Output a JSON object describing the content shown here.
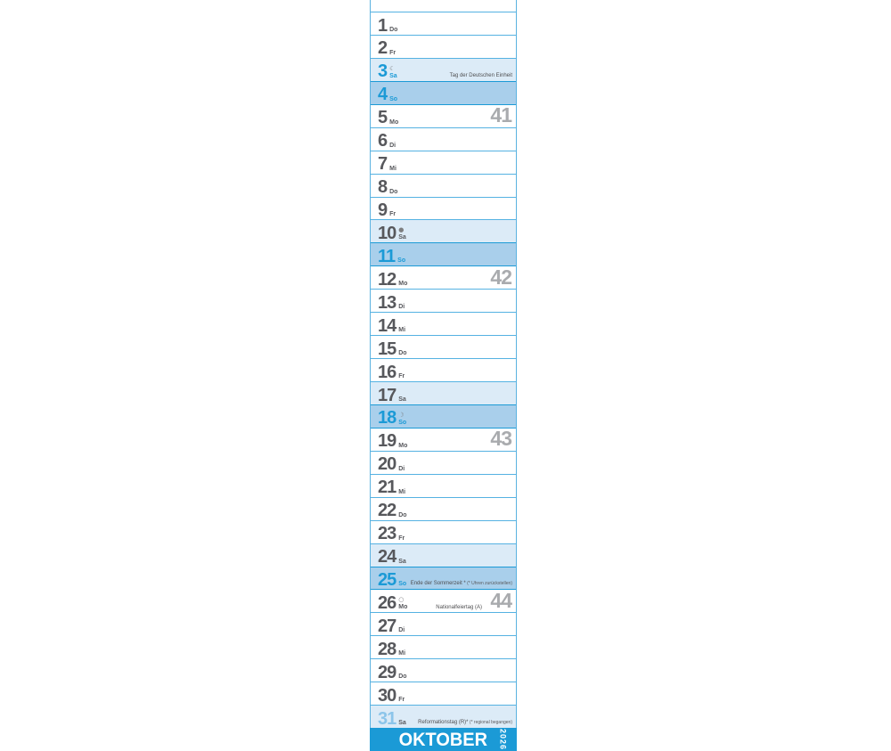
{
  "calendar": {
    "month_label": "OKTOBER",
    "year_label": "2026",
    "days": [
      {
        "num": "1",
        "weekday": "Do",
        "type": "weekday"
      },
      {
        "num": "2",
        "weekday": "Fr",
        "type": "weekday"
      },
      {
        "num": "3",
        "weekday": "Sa",
        "type": "holiday_saturday",
        "moon": {
          "name": "last-quarter-moon",
          "glyph": "☾"
        },
        "note": "Tag der Deutschen Einheit"
      },
      {
        "num": "4",
        "weekday": "So",
        "type": "sunday"
      },
      {
        "num": "5",
        "weekday": "Mo",
        "type": "weekday",
        "week": "41"
      },
      {
        "num": "6",
        "weekday": "Di",
        "type": "weekday"
      },
      {
        "num": "7",
        "weekday": "Mi",
        "type": "weekday"
      },
      {
        "num": "8",
        "weekday": "Do",
        "type": "weekday"
      },
      {
        "num": "9",
        "weekday": "Fr",
        "type": "weekday"
      },
      {
        "num": "10",
        "weekday": "Sa",
        "type": "saturday",
        "moon": {
          "name": "new-moon",
          "glyph": "●"
        }
      },
      {
        "num": "11",
        "weekday": "So",
        "type": "sunday"
      },
      {
        "num": "12",
        "weekday": "Mo",
        "type": "weekday",
        "week": "42"
      },
      {
        "num": "13",
        "weekday": "Di",
        "type": "weekday"
      },
      {
        "num": "14",
        "weekday": "Mi",
        "type": "weekday"
      },
      {
        "num": "15",
        "weekday": "Do",
        "type": "weekday"
      },
      {
        "num": "16",
        "weekday": "Fr",
        "type": "weekday"
      },
      {
        "num": "17",
        "weekday": "Sa",
        "type": "saturday"
      },
      {
        "num": "18",
        "weekday": "So",
        "type": "sunday",
        "moon": {
          "name": "first-quarter-moon",
          "glyph": "☽"
        }
      },
      {
        "num": "19",
        "weekday": "Mo",
        "type": "weekday",
        "week": "43"
      },
      {
        "num": "20",
        "weekday": "Di",
        "type": "weekday"
      },
      {
        "num": "21",
        "weekday": "Mi",
        "type": "weekday"
      },
      {
        "num": "22",
        "weekday": "Do",
        "type": "weekday"
      },
      {
        "num": "23",
        "weekday": "Fr",
        "type": "weekday"
      },
      {
        "num": "24",
        "weekday": "Sa",
        "type": "saturday"
      },
      {
        "num": "25",
        "weekday": "So",
        "type": "sunday",
        "note": "Ende der Sommerzeit *",
        "note2": "(* Uhren zurückstellen)"
      },
      {
        "num": "26",
        "weekday": "Mo",
        "type": "weekday",
        "week": "44",
        "moon": {
          "name": "full-moon",
          "glyph": "○"
        },
        "note": "Nationalfeiertag (A)"
      },
      {
        "num": "27",
        "weekday": "Di",
        "type": "weekday"
      },
      {
        "num": "28",
        "weekday": "Mi",
        "type": "weekday"
      },
      {
        "num": "29",
        "weekday": "Do",
        "type": "weekday"
      },
      {
        "num": "30",
        "weekday": "Fr",
        "type": "weekday"
      },
      {
        "num": "31",
        "weekday": "Sa",
        "type": "regional_saturday",
        "note": "Reformationstag (R)*",
        "note2": "(* regional begangen)"
      }
    ]
  },
  "colors": {
    "accent_blue": "#1b9ad6",
    "sunday_row_bg": "#a9cfeb",
    "saturday_row_bg": "#dcebf7",
    "number_gray": "#57585c",
    "week_number_gray": "#a9abae",
    "regional_day_blue": "#8cc5ea",
    "separator_blue": "#55b2e2"
  }
}
